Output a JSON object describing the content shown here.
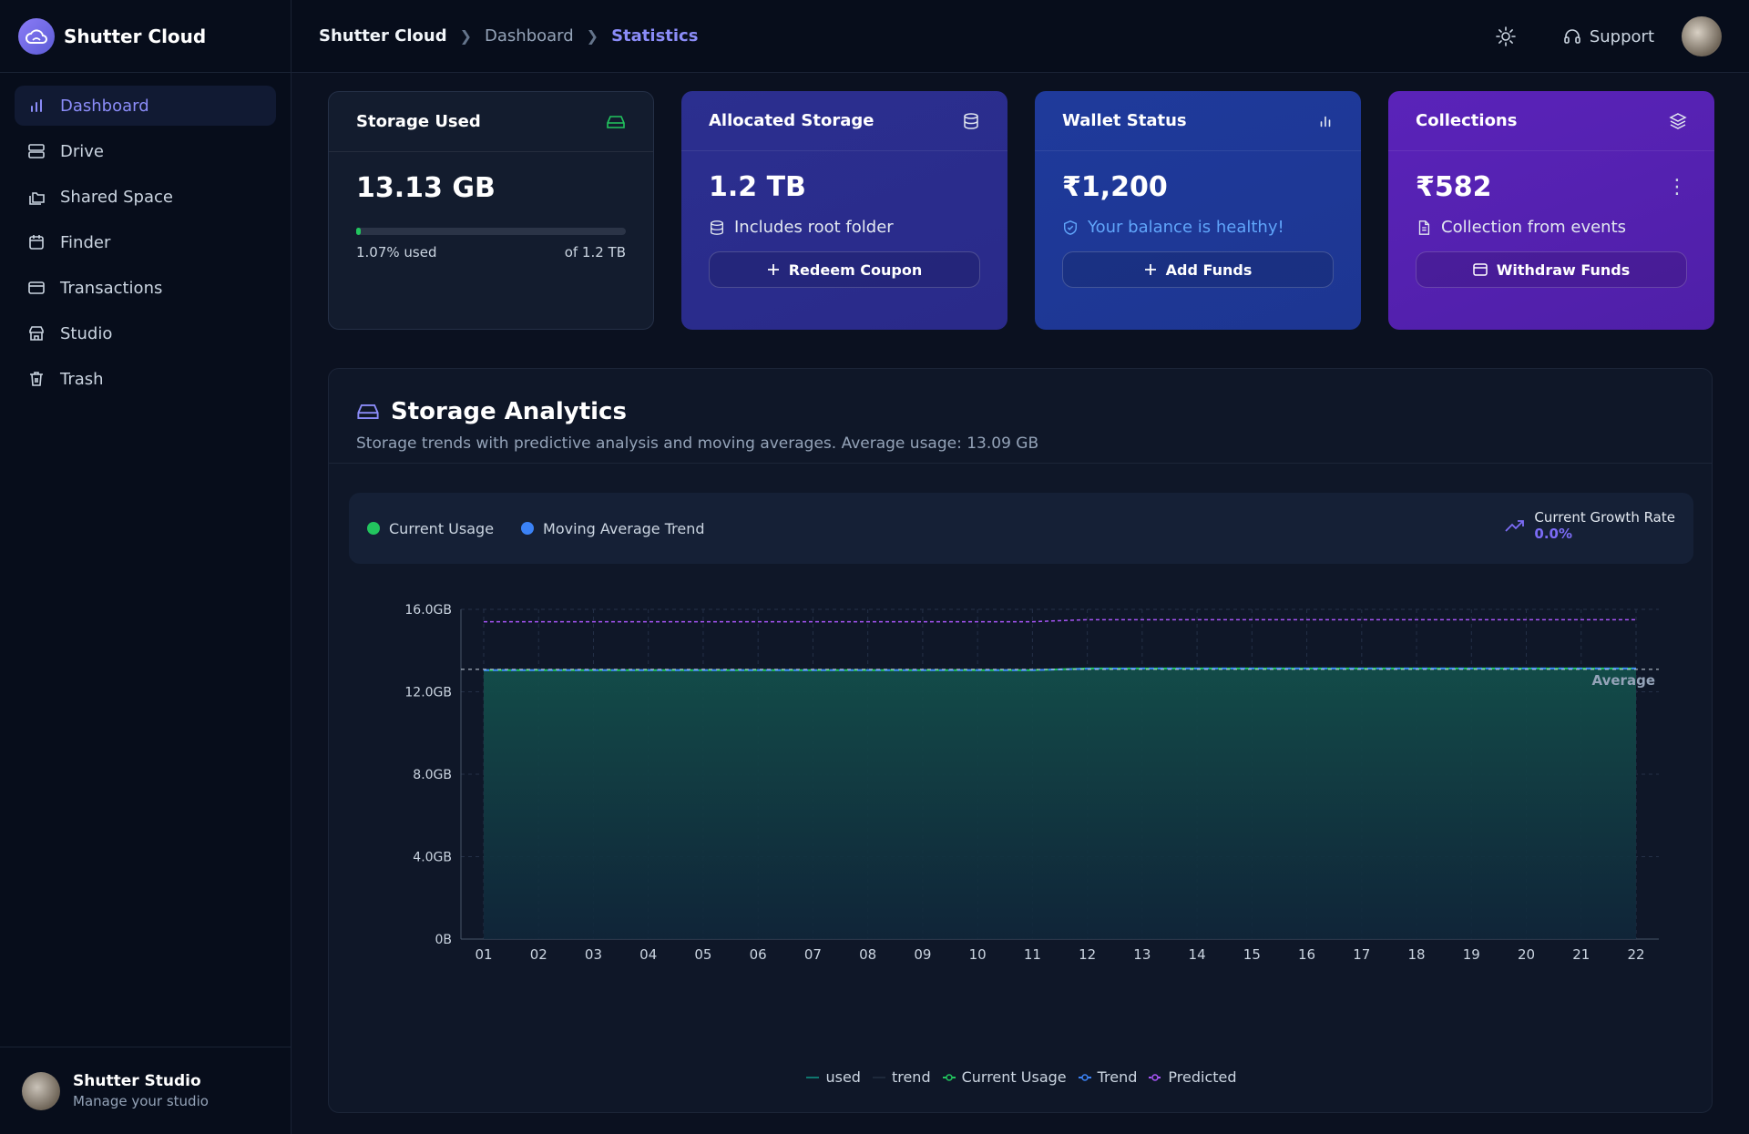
{
  "app": {
    "name": "Shutter Cloud"
  },
  "sidebar": {
    "items": [
      {
        "label": "Dashboard",
        "icon": "bar-chart-icon",
        "active": true
      },
      {
        "label": "Drive",
        "icon": "server-icon"
      },
      {
        "label": "Shared Space",
        "icon": "folders-icon"
      },
      {
        "label": "Finder",
        "icon": "calendar-icon"
      },
      {
        "label": "Transactions",
        "icon": "credit-card-icon"
      },
      {
        "label": "Studio",
        "icon": "store-icon"
      },
      {
        "label": "Trash",
        "icon": "trash-icon"
      }
    ],
    "footer": {
      "title": "Shutter Studio",
      "subtitle": "Manage your studio"
    }
  },
  "header": {
    "breadcrumbs": [
      "Shutter Cloud",
      "Dashboard",
      "Statistics"
    ],
    "support_label": "Support"
  },
  "cards": {
    "storage_used": {
      "title": "Storage Used",
      "value": "13.13 GB",
      "used_label": "1.07% used",
      "total_label": "of 1.2 TB",
      "used_fraction": 0.0107
    },
    "allocated": {
      "title": "Allocated Storage",
      "value": "1.2 TB",
      "sub": "Includes root folder",
      "button": "Redeem Coupon"
    },
    "wallet": {
      "title": "Wallet Status",
      "value": "₹1,200",
      "sub": "Your balance is healthy!",
      "button": "Add Funds"
    },
    "collections": {
      "title": "Collections",
      "value": "₹582",
      "sub": "Collection from events",
      "button": "Withdraw Funds"
    }
  },
  "analytics": {
    "title": "Storage Analytics",
    "subtitle": "Storage trends with predictive analysis and moving averages. Average usage: 13.09 GB",
    "legend": [
      {
        "label": "Current Usage",
        "color": "#22c55e"
      },
      {
        "label": "Moving Average Trend",
        "color": "#3b82f6"
      }
    ],
    "growth": {
      "label": "Current Growth Rate",
      "value": "0.0%"
    },
    "bottom_legend": [
      "used",
      "trend",
      "Current Usage",
      "Trend",
      "Predicted"
    ]
  },
  "colors": {
    "accent": "#8b8cf8",
    "usage": "#22c55e",
    "trend": "#3b82f6",
    "predicted": "#a855f7"
  },
  "chart_data": {
    "type": "area",
    "x": [
      "01",
      "02",
      "03",
      "04",
      "05",
      "06",
      "07",
      "08",
      "09",
      "10",
      "11",
      "12",
      "13",
      "14",
      "15",
      "16",
      "17",
      "18",
      "19",
      "20",
      "21",
      "22"
    ],
    "series": [
      {
        "name": "Current Usage",
        "values": [
          13.05,
          13.05,
          13.05,
          13.05,
          13.05,
          13.05,
          13.05,
          13.05,
          13.05,
          13.05,
          13.05,
          13.13,
          13.13,
          13.13,
          13.13,
          13.13,
          13.13,
          13.13,
          13.13,
          13.13,
          13.13,
          13.13
        ]
      },
      {
        "name": "Trend",
        "values": [
          13.05,
          13.05,
          13.05,
          13.05,
          13.05,
          13.05,
          13.05,
          13.05,
          13.05,
          13.05,
          13.05,
          13.12,
          13.13,
          13.13,
          13.13,
          13.13,
          13.13,
          13.13,
          13.13,
          13.13,
          13.13,
          13.13
        ]
      },
      {
        "name": "Predicted",
        "values": [
          15.4,
          15.4,
          15.4,
          15.4,
          15.4,
          15.4,
          15.4,
          15.4,
          15.4,
          15.4,
          15.4,
          15.5,
          15.5,
          15.5,
          15.5,
          15.5,
          15.5,
          15.5,
          15.5,
          15.5,
          15.5,
          15.5
        ]
      }
    ],
    "yticks": [
      "0B",
      "4.0GB",
      "8.0GB",
      "12.0GB",
      "16.0GB"
    ],
    "ylim": [
      0,
      16
    ],
    "average": {
      "value": 13.09,
      "label": "Average"
    },
    "grid": true
  }
}
